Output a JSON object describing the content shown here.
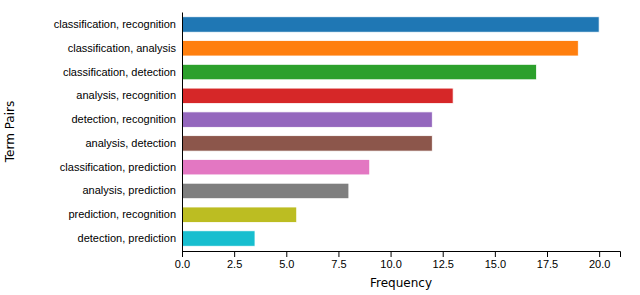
{
  "chart_data": {
    "type": "bar",
    "orientation": "horizontal",
    "categories": [
      "detection, prediction",
      "prediction, recognition",
      "analysis, prediction",
      "classification, prediction",
      "analysis, detection",
      "detection, recognition",
      "analysis, recognition",
      "classification, detection",
      "classification, analysis",
      "classification, recognition"
    ],
    "values": [
      3.5,
      5.5,
      8.0,
      9.0,
      12.0,
      12.0,
      13.0,
      17.0,
      19.0,
      20.0
    ],
    "colors": [
      "#17becf",
      "#bcbd22",
      "#7f7f7f",
      "#e377c2",
      "#8c564b",
      "#9467bd",
      "#d62728",
      "#2ca02c",
      "#ff7f0e",
      "#1f77b4"
    ],
    "xlabel": "Frequency",
    "ylabel": "Term Pairs",
    "xlim": [
      0,
      21
    ],
    "xticks": [
      {
        "value": 0,
        "label": "0.0"
      },
      2.5,
      {
        "value": 5,
        "label": "5.0"
      },
      7.5,
      {
        "value": 10,
        "label": "10.0"
      },
      12.5,
      {
        "value": 15,
        "label": "15.0"
      },
      17.5,
      {
        "value": 20,
        "label": "20.0"
      }
    ],
    "grid": false
  }
}
